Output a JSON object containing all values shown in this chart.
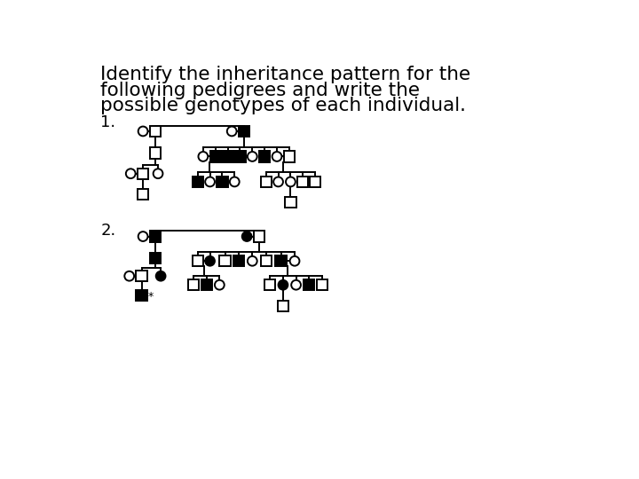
{
  "bg_color": "#ffffff",
  "title_lines": [
    "Identify the inheritance pattern for the",
    "following pedigrees and write the",
    "possible genotypes of each individual."
  ],
  "title_fontsize": 15.5,
  "label_fontsize": 13,
  "S": 8,
  "R": 7,
  "lw": 1.4
}
